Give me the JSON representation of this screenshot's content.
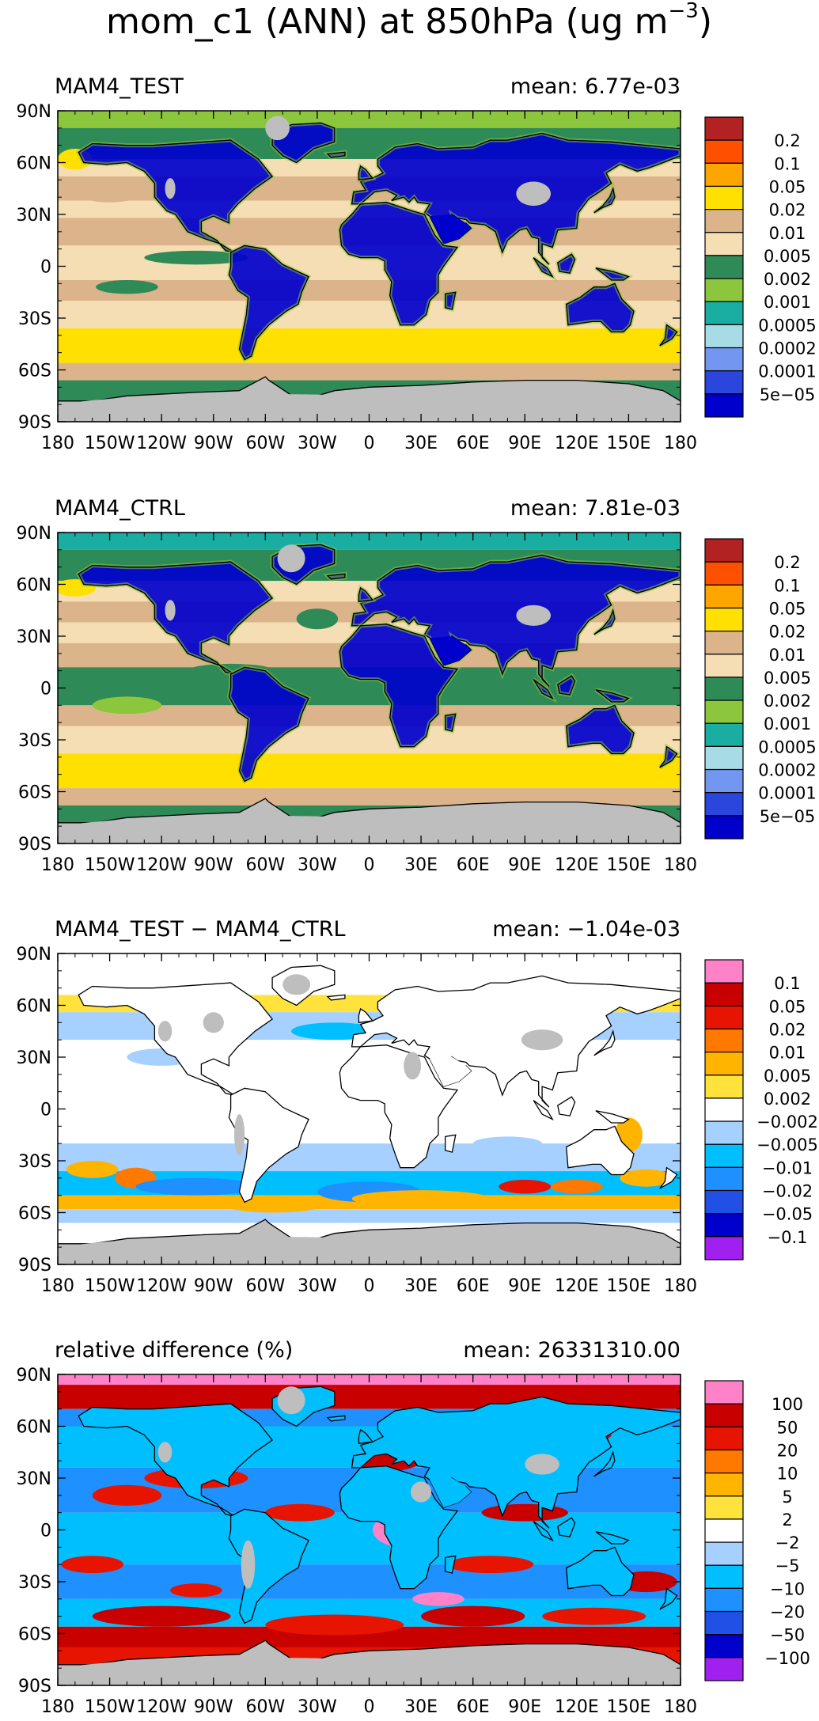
{
  "figure": {
    "title_main": "mom_c1 (ANN) at 850hPa (ug m",
    "title_sup": "−3",
    "title_close": ")"
  },
  "colors": {
    "land_missing": "#bebebe",
    "abs_scale": [
      "#0000cc",
      "#2a46dc",
      "#7396f0",
      "#a7dce6",
      "#1aaea2",
      "#8cc63c",
      "#2e8b57",
      "#f5deb3",
      "#dcb48c",
      "#ffe000",
      "#ffa500",
      "#ff5000",
      "#b22222"
    ],
    "diff_scale": [
      "#a020f0",
      "#0000cd",
      "#2050e6",
      "#1e90ff",
      "#00bfff",
      "#a6d0ff",
      "#ffffff",
      "#ffe23c",
      "#ffb400",
      "#ff7800",
      "#e61400",
      "#c80000",
      "#ff82c8"
    ]
  },
  "chart_data": [
    {
      "type": "heatmap",
      "panel": "MAM4_TEST",
      "title": "MAM4_TEST",
      "stat": "mean: 6.77e-03",
      "x_ticks": [
        "180",
        "150W",
        "120W",
        "90W",
        "60W",
        "30W",
        "0",
        "30E",
        "60E",
        "90E",
        "120E",
        "150E",
        "180"
      ],
      "y_ticks": [
        "90N",
        "60N",
        "30N",
        "0",
        "30S",
        "60S",
        "90S"
      ],
      "xlim": [
        -180,
        180
      ],
      "ylim": [
        -90,
        90
      ],
      "colorbar_levels": [
        "5e−05",
        "0.0001",
        "0.0002",
        "0.0005",
        "0.001",
        "0.002",
        "0.005",
        "0.01",
        "0.02",
        "0.05",
        "0.1",
        "0.2"
      ],
      "mean": 0.00677
    },
    {
      "type": "heatmap",
      "panel": "MAM4_CTRL",
      "title": "MAM4_CTRL",
      "stat": "mean: 7.81e-03",
      "x_ticks": [
        "180",
        "150W",
        "120W",
        "90W",
        "60W",
        "30W",
        "0",
        "30E",
        "60E",
        "90E",
        "120E",
        "150E",
        "180"
      ],
      "y_ticks": [
        "90N",
        "60N",
        "30N",
        "0",
        "30S",
        "60S",
        "90S"
      ],
      "xlim": [
        -180,
        180
      ],
      "ylim": [
        -90,
        90
      ],
      "colorbar_levels": [
        "5e−05",
        "0.0001",
        "0.0002",
        "0.0005",
        "0.001",
        "0.002",
        "0.005",
        "0.01",
        "0.02",
        "0.05",
        "0.1",
        "0.2"
      ],
      "mean": 0.00781
    },
    {
      "type": "heatmap",
      "panel": "difference",
      "title": "MAM4_TEST − MAM4_CTRL",
      "stat": "mean: −1.04e-03",
      "x_ticks": [
        "180",
        "150W",
        "120W",
        "90W",
        "60W",
        "30W",
        "0",
        "30E",
        "60E",
        "90E",
        "120E",
        "150E",
        "180"
      ],
      "y_ticks": [
        "90N",
        "60N",
        "30N",
        "0",
        "30S",
        "60S",
        "90S"
      ],
      "xlim": [
        -180,
        180
      ],
      "ylim": [
        -90,
        90
      ],
      "colorbar_levels": [
        "−0.1",
        "−0.05",
        "−0.02",
        "−0.01",
        "−0.005",
        "−0.002",
        "0.002",
        "0.005",
        "0.01",
        "0.02",
        "0.05",
        "0.1"
      ],
      "mean": -0.00104
    },
    {
      "type": "heatmap",
      "panel": "relative-difference",
      "title": "relative difference (%)",
      "stat": "mean: 26331310.00",
      "x_ticks": [
        "180",
        "150W",
        "120W",
        "90W",
        "60W",
        "30W",
        "0",
        "30E",
        "60E",
        "90E",
        "120E",
        "150E",
        "180"
      ],
      "y_ticks": [
        "90N",
        "60N",
        "30N",
        "0",
        "30S",
        "60S",
        "90S"
      ],
      "xlim": [
        -180,
        180
      ],
      "ylim": [
        -90,
        90
      ],
      "colorbar_levels": [
        "−100",
        "−50",
        "−20",
        "−10",
        "−5",
        "−2",
        "2",
        "5",
        "10",
        "20",
        "50",
        "100"
      ],
      "mean": 26331310.0
    }
  ]
}
